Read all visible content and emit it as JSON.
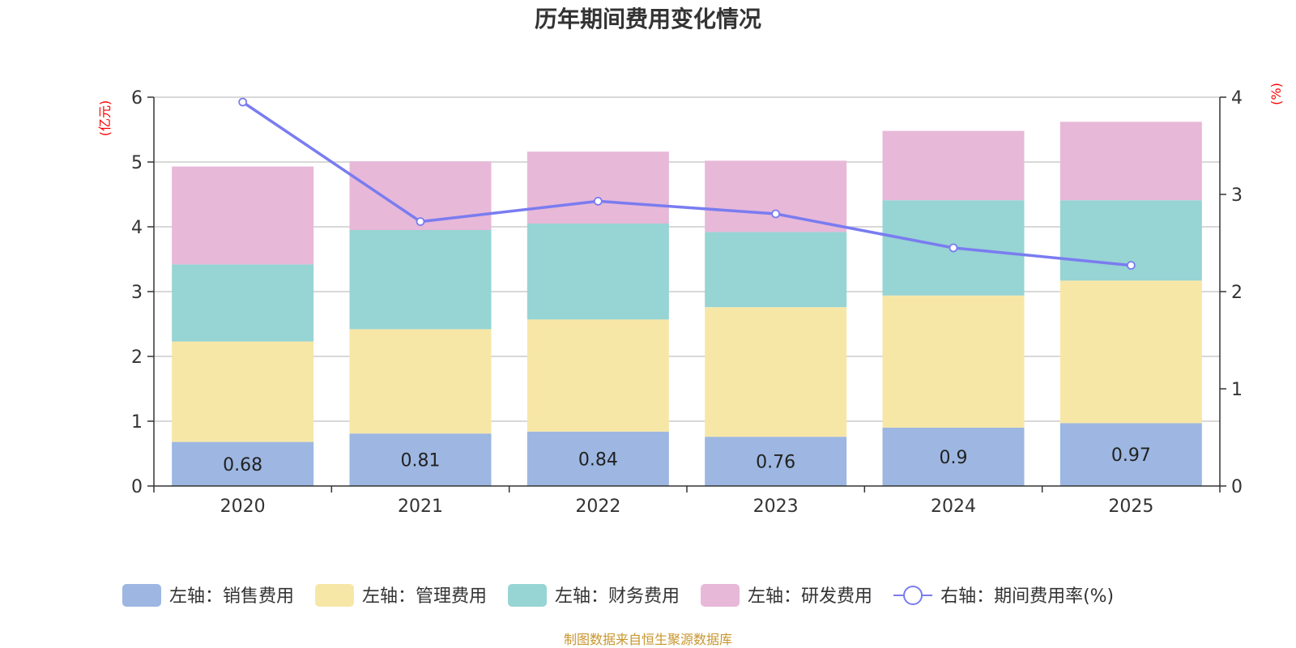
{
  "chart_data": {
    "type": "bar",
    "title": "历年期间费用变化情况",
    "categories": [
      "2020",
      "2021",
      "2022",
      "2023",
      "2024",
      "2025"
    ],
    "y_left": {
      "unit_label": "(亿元)",
      "ylim": [
        0,
        6
      ],
      "ticks": [
        "0",
        "1",
        "2",
        "3",
        "4",
        "5",
        "6"
      ]
    },
    "y_right": {
      "unit_label": "(%)",
      "ylim": [
        0,
        4
      ],
      "ticks": [
        "0",
        "1",
        "2",
        "3",
        "4"
      ]
    },
    "grid": true,
    "stacked": true,
    "series": [
      {
        "name": "左轴：销售费用",
        "axis": "left",
        "color": "#9db7e2",
        "values": [
          0.68,
          0.81,
          0.84,
          0.76,
          0.9,
          0.97
        ],
        "show_labels": true
      },
      {
        "name": "左轴：管理费用",
        "axis": "left",
        "color": "#f7e7a7",
        "values": [
          1.55,
          1.61,
          1.73,
          2.0,
          2.04,
          2.2
        ],
        "show_labels": false
      },
      {
        "name": "左轴：财务费用",
        "axis": "left",
        "color": "#97d4d4",
        "values": [
          1.19,
          1.53,
          1.48,
          1.16,
          1.47,
          1.24
        ],
        "show_labels": false
      },
      {
        "name": "左轴：研发费用",
        "axis": "left",
        "color": "#e7b8d8",
        "values": [
          1.51,
          1.06,
          1.11,
          1.1,
          1.07,
          1.21
        ],
        "show_labels": false
      }
    ],
    "line_series": {
      "name": "右轴：期间费用率(%)",
      "axis": "right",
      "type": "line",
      "color": "#7a7cf0",
      "values": [
        3.95,
        2.72,
        2.93,
        2.8,
        2.45,
        2.27
      ]
    },
    "legend_position": "bottom"
  },
  "footer": {
    "source_text": "制图数据来自恒生聚源数据库"
  }
}
